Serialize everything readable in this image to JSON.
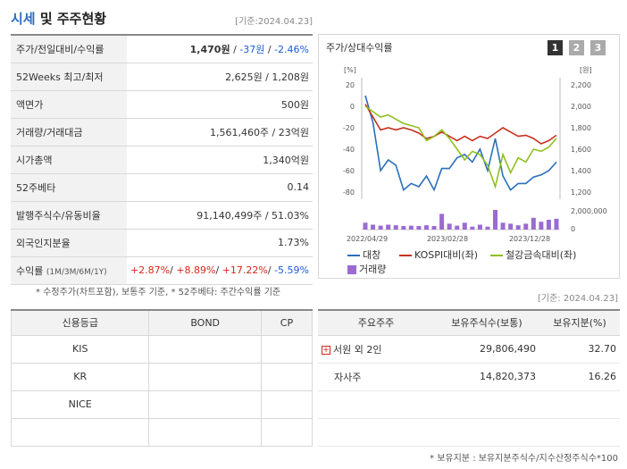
{
  "header": {
    "title_main": "시세",
    "title_rest": " 및 주주현황",
    "base_date": "[기준:2024.04.23]"
  },
  "quote": [
    {
      "label": "주가/전일대비/수익률",
      "price": "1,470원",
      "sep1": " / ",
      "change": "-37원",
      "sep2": " / ",
      "rate": "-2.46%"
    },
    {
      "label": "52Weeks 최고/최저",
      "value": "2,625원 / 1,208원"
    },
    {
      "label": "액면가",
      "value": "500원"
    },
    {
      "label": "거래량/거래대금",
      "value": "1,561,460주 / 23억원"
    },
    {
      "label": "시가총액",
      "value": "1,340억원"
    },
    {
      "label": "52주베타",
      "value": "0.14"
    },
    {
      "label": "발행주식수/유동비율",
      "value": "91,140,499주 / 51.03%"
    },
    {
      "label": "외국인지분율",
      "value": "1.73%"
    },
    {
      "label": "수익률",
      "label_sub": "(1M/3M/6M/1Y)",
      "r1": "+2.87%",
      "r2": "+8.89%",
      "r3": "+17.22%",
      "r4": "-5.59%"
    }
  ],
  "note1": "* 수정주가(차트포함), 보통주 기준, * 52주베타: 주간수익률 기준",
  "chart_panel": {
    "title": "주가/상대수익률",
    "pages": [
      "1",
      "2",
      "3"
    ],
    "active_page": "1"
  },
  "chart_data": {
    "type": "line",
    "x_ticks": [
      "2022/04/29",
      "2023/02/28",
      "2023/12/28"
    ],
    "left_axis": {
      "unit": "[%]",
      "ticks": [
        "20",
        "0",
        "-20",
        "-40",
        "-60",
        "-80"
      ],
      "range": [
        -80,
        20
      ]
    },
    "right_axis": {
      "unit": "[원]",
      "ticks": [
        "2,200",
        "2,000",
        "1,800",
        "1,600",
        "1,400",
        "1,200"
      ],
      "range": [
        1100,
        2250
      ]
    },
    "volume_axis": {
      "ticks": [
        "2,000,000",
        "0"
      ]
    },
    "series": [
      {
        "name": "대창",
        "color": "#2a6ebb",
        "values": [
          10,
          -15,
          -60,
          -50,
          -55,
          -78,
          -72,
          -75,
          -65,
          -78,
          -58,
          -58,
          -48,
          -45,
          -52,
          -40,
          -60,
          -30,
          -65,
          -78,
          -72,
          -72,
          -66,
          -64,
          -60,
          -52
        ]
      },
      {
        "name": "KOSPI대비(좌)",
        "color": "#c8301e",
        "values": [
          2,
          -10,
          -22,
          -20,
          -22,
          -20,
          -22,
          -25,
          -30,
          -28,
          -24,
          -28,
          -32,
          -28,
          -32,
          -28,
          -30,
          -25,
          -20,
          -24,
          -28,
          -27,
          -30,
          -35,
          -32,
          -27
        ]
      },
      {
        "name": "철강금속대비(좌)",
        "color": "#8fbf1f",
        "values": [
          0,
          -5,
          -10,
          -8,
          -12,
          -16,
          -18,
          -20,
          -32,
          -28,
          -22,
          -30,
          -40,
          -50,
          -42,
          -45,
          -55,
          -75,
          -45,
          -62,
          -48,
          -52,
          -40,
          -42,
          -38,
          -30
        ]
      }
    ],
    "volume": {
      "name": "거래량",
      "color": "#9b6bd1",
      "values": [
        0.35,
        0.25,
        0.2,
        0.25,
        0.22,
        0.18,
        0.2,
        0.18,
        0.22,
        0.18,
        0.8,
        0.3,
        0.2,
        0.35,
        0.15,
        0.25,
        0.15,
        1.0,
        0.35,
        0.3,
        0.22,
        0.3,
        0.6,
        0.4,
        0.5,
        0.55
      ]
    }
  },
  "base_date2": "[기준: 2024.04.23]",
  "credit": {
    "headers": [
      "신용등급",
      "BOND",
      "CP"
    ],
    "rows": [
      [
        "KIS",
        "",
        ""
      ],
      [
        "KR",
        "",
        ""
      ],
      [
        "NICE",
        "",
        ""
      ],
      [
        "",
        "",
        ""
      ]
    ]
  },
  "holders": {
    "headers": [
      "주요주주",
      "보유주식수(보통)",
      "보유지분(%)"
    ],
    "rows": [
      {
        "name": "서원 외 2인",
        "shares": "29,806,490",
        "pct": "32.70",
        "expand": "+"
      },
      {
        "name": "자사주",
        "shares": "14,820,373",
        "pct": "16.26",
        "expand": ""
      },
      {
        "name": "",
        "shares": "",
        "pct": "",
        "expand": ""
      },
      {
        "name": "",
        "shares": "",
        "pct": "",
        "expand": ""
      }
    ]
  },
  "note2": "* 보유지분 : 보유지분주식수/지수산정주식수*100"
}
